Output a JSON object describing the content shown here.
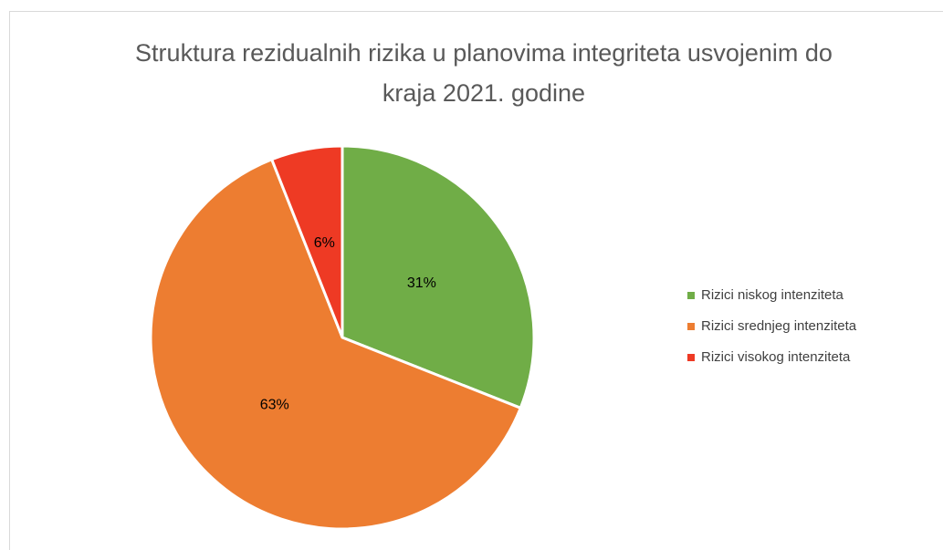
{
  "chart_data": {
    "type": "pie",
    "title": "Struktura rezidualnih rizika u planovima integriteta usvojenim do kraja 2021. godine",
    "categories": [
      "Rizici niskog intenziteta",
      "Rizici srednjeg intenziteta",
      "Rizici visokog intenziteta"
    ],
    "values": [
      31,
      63,
      6
    ],
    "value_labels": [
      "31%",
      "63%",
      "6%"
    ],
    "colors": [
      "#70ad47",
      "#ed7d31",
      "#ee3a24"
    ],
    "legend": "right"
  }
}
